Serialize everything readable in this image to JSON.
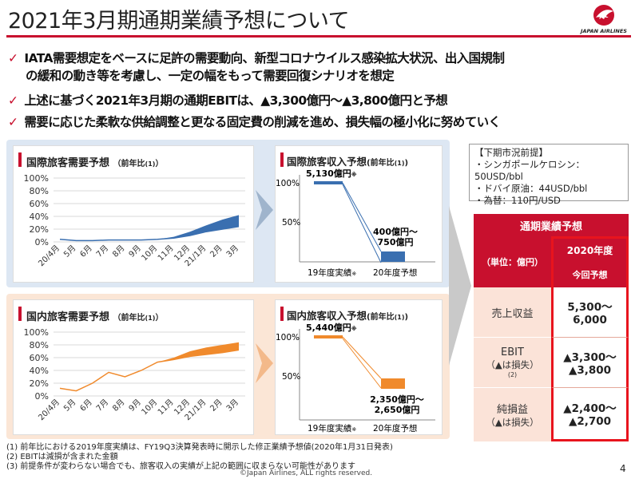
{
  "title": "2021年3月期通期業績予想について",
  "logo": {
    "text": "JAPAN AIRLINES",
    "icon": "jal-crane-logo-icon"
  },
  "bullets": [
    {
      "line1": "IATA需要想定をベースに足許の需要動向、新型コロナウイルス感染拡大状況、出入国規制",
      "line2": "の緩和の動き等を考慮し、一定の幅をもって需要回復シナリオを想定"
    },
    {
      "line1": "上述に基づく2021年3月期の通期EBITは、▲3,300億円〜▲3,800億円と予想"
    },
    {
      "line1": "需要に応じた柔軟な供給調整と更なる固定費の削減を進め、損失幅の極小化に努めていく"
    }
  ],
  "intl_demand": {
    "title": "国際旅客需要予想",
    "sub": "（前年比",
    "note": "(1)",
    "sub_close": "）",
    "y_ticks": [
      "100%",
      "80%",
      "60%",
      "40%",
      "20%",
      "0%"
    ],
    "x_ticks": [
      "20/4月",
      "5月",
      "6月",
      "7月",
      "8月",
      "9月",
      "10月",
      "11月",
      "12月",
      "21/1月",
      "2月",
      "3月"
    ]
  },
  "intl_revenue": {
    "title": "国際旅客収入予想",
    "sub": "(前年比",
    "note": "(1)",
    "sub_close": ")",
    "y100": "100%",
    "y50": "50%",
    "val_prev": "5,130億円",
    "val_prev_note": "※",
    "val_curr_1": "400億円〜",
    "val_curr_2": "750億円",
    "x_prev": "19年度実績",
    "x_prev_note": "※",
    "x_curr": "20年度予想"
  },
  "dom_demand": {
    "title": "国内旅客需要予想",
    "sub": "（前年比",
    "note": "(1)",
    "sub_close": "）",
    "y_ticks": [
      "100%",
      "80%",
      "60%",
      "40%",
      "20%",
      "0%"
    ],
    "x_ticks": [
      "20/4月",
      "5月",
      "6月",
      "7月",
      "8月",
      "9月",
      "10月",
      "11月",
      "12月",
      "21/1月",
      "2月",
      "3月"
    ]
  },
  "dom_revenue": {
    "title": "国内旅客収入予想",
    "sub": "(前年比",
    "note": "(1)",
    "sub_close": ")",
    "y100": "100%",
    "y50": "50%",
    "val_prev": "5,440億円",
    "val_prev_note": "※",
    "val_curr_1": "2,350億円〜",
    "val_curr_2": "2,650億円",
    "x_prev": "19年度実績",
    "x_prev_note": "※",
    "x_curr": "20年度予想"
  },
  "conditions": {
    "header": "【下期市況前提】",
    "items": [
      "・シンガポールケロシン：50USD/bbl",
      "・ドバイ原油：44USD/bbl",
      "・為替：110円/USD"
    ]
  },
  "forecast": {
    "header": "通期業績予想",
    "unit": "（単位：億円）",
    "col_year": "2020年度",
    "col_sub": "今回予想",
    "rows": [
      {
        "label": "売上収益",
        "label2": "",
        "note": "",
        "v1": "5,300〜",
        "v2": "6,000"
      },
      {
        "label": "EBIT",
        "label2": "（▲は損失）",
        "note": "(2)",
        "v1": "▲3,300〜",
        "v2": "▲3,800"
      },
      {
        "label": "純損益",
        "label2": "（▲は損失）",
        "note": "",
        "v1": "▲2,400〜",
        "v2": "▲2,700"
      }
    ]
  },
  "footnotes": [
    "(1) 前年比における2019年度実績は、FY19Q3決算発表時に開示した修正業績予想値(2020年1月31日発表)",
    "(2) EBITは減損が含まれた金額",
    "(3) 前提条件が変わらない場合でも、旅客収入の実績が上記の範囲に収まらない可能性があります"
  ],
  "copyright": "©Japan Airlines, ALL rights reserved.",
  "page_number": "4",
  "colors": {
    "accent": "#c8102e",
    "blue": "#3a6fb0",
    "orange": "#f08a2c"
  },
  "chart_data": [
    {
      "type": "area",
      "title": "国際旅客需要予想 （前年比(1)）",
      "categories": [
        "20/4月",
        "5月",
        "6月",
        "7月",
        "8月",
        "9月",
        "10月",
        "11月",
        "12月",
        "21/1月",
        "2月",
        "3月"
      ],
      "series": [
        {
          "values_low": [
            4,
            2,
            2,
            3,
            3,
            3,
            4,
            6,
            10,
            16,
            20,
            24
          ],
          "values_high": [
            4,
            2,
            2,
            3,
            3,
            3,
            4,
            8,
            16,
            26,
            35,
            42
          ]
        }
      ],
      "ylim": [
        0,
        100
      ],
      "grid": true
    },
    {
      "type": "area",
      "title": "国内旅客需要予想 （前年比(1)）",
      "categories": [
        "20/4月",
        "5月",
        "6月",
        "7月",
        "8月",
        "9月",
        "10月",
        "11月",
        "12月",
        "21/1月",
        "2月",
        "3月"
      ],
      "series": [
        {
          "values_low": [
            12,
            8,
            20,
            37,
            30,
            40,
            53,
            57,
            62,
            65,
            68,
            72
          ],
          "values_high": [
            12,
            8,
            20,
            37,
            30,
            40,
            53,
            60,
            70,
            76,
            80,
            84
          ]
        }
      ],
      "ylim": [
        0,
        100
      ],
      "grid": true
    }
  ]
}
